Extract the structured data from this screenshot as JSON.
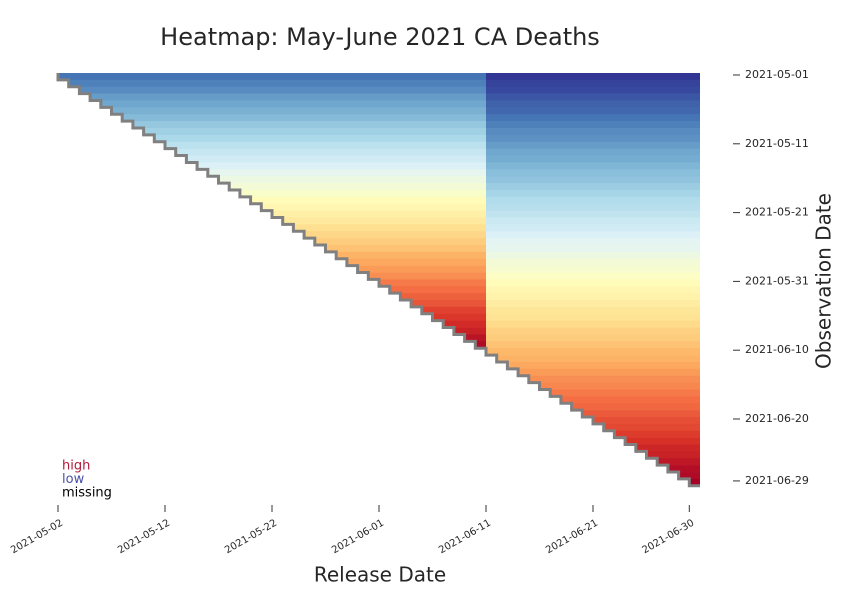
{
  "chart_data": {
    "type": "heatmap",
    "title": "Heatmap: May-June 2021 CA Deaths",
    "x_label": "Release Date",
    "y_label": "Observation Date",
    "xlim": [
      "2021-05-02",
      "2021-06-30"
    ],
    "ylim": [
      "2021-05-01",
      "2021-06-29"
    ],
    "xticks": [
      "2021-05-02",
      "2021-05-12",
      "2021-05-22",
      "2021-06-01",
      "2021-06-11",
      "2021-06-21",
      "2021-06-30"
    ],
    "yticks": [
      "2021-05-01",
      "2021-05-11",
      "2021-05-21",
      "2021-05-31",
      "2021-06-10",
      "2021-06-20",
      "2021-06-29"
    ],
    "break_date": "2021-06-11",
    "colormap": "RdYlBu_r",
    "legend": [
      {
        "label": "high",
        "color": "#b2183a"
      },
      {
        "label": "low",
        "color": "#4a4fa8"
      },
      {
        "label": "missing",
        "color": "#000000"
      }
    ],
    "values": [
      [
        0.1,
        0.0
      ],
      [
        0.12,
        0.02
      ],
      [
        0.14,
        0.03
      ],
      [
        0.17,
        0.05
      ],
      [
        0.19,
        0.07
      ],
      [
        0.21,
        0.08
      ],
      [
        0.23,
        0.1
      ],
      [
        0.26,
        0.12
      ],
      [
        0.28,
        0.14
      ],
      [
        0.3,
        0.15
      ],
      [
        0.33,
        0.17
      ],
      [
        0.35,
        0.19
      ],
      [
        0.37,
        0.2
      ],
      [
        0.39,
        0.22
      ],
      [
        0.42,
        0.24
      ],
      [
        0.44,
        0.25
      ],
      [
        0.46,
        0.27
      ],
      [
        0.48,
        0.29
      ],
      [
        0.51,
        0.31
      ],
      [
        0.53,
        0.32
      ],
      [
        0.55,
        0.34
      ],
      [
        0.57,
        0.36
      ],
      [
        0.6,
        0.37
      ],
      [
        0.62,
        0.39
      ],
      [
        0.64,
        0.41
      ],
      [
        0.66,
        0.42
      ],
      [
        0.69,
        0.44
      ],
      [
        0.71,
        0.46
      ],
      [
        0.73,
        0.47
      ],
      [
        0.75,
        0.49
      ],
      [
        0.78,
        0.51
      ],
      [
        0.8,
        0.53
      ],
      [
        0.82,
        0.54
      ],
      [
        0.84,
        0.56
      ],
      [
        0.87,
        0.58
      ],
      [
        0.89,
        0.59
      ],
      [
        0.91,
        0.61
      ],
      [
        0.93,
        0.63
      ],
      [
        0.96,
        0.64
      ],
      [
        0.98,
        0.66
      ],
      [
        null,
        0.68
      ],
      [
        null,
        0.69
      ],
      [
        null,
        0.71
      ],
      [
        null,
        0.73
      ],
      [
        null,
        0.75
      ],
      [
        null,
        0.76
      ],
      [
        null,
        0.78
      ],
      [
        null,
        0.8
      ],
      [
        null,
        0.81
      ],
      [
        null,
        0.83
      ],
      [
        null,
        0.85
      ],
      [
        null,
        0.86
      ],
      [
        null,
        0.88
      ],
      [
        null,
        0.9
      ],
      [
        null,
        0.92
      ],
      [
        null,
        0.93
      ],
      [
        null,
        0.95
      ],
      [
        null,
        0.97
      ],
      [
        null,
        0.98
      ],
      [
        null,
        1.0
      ]
    ]
  }
}
